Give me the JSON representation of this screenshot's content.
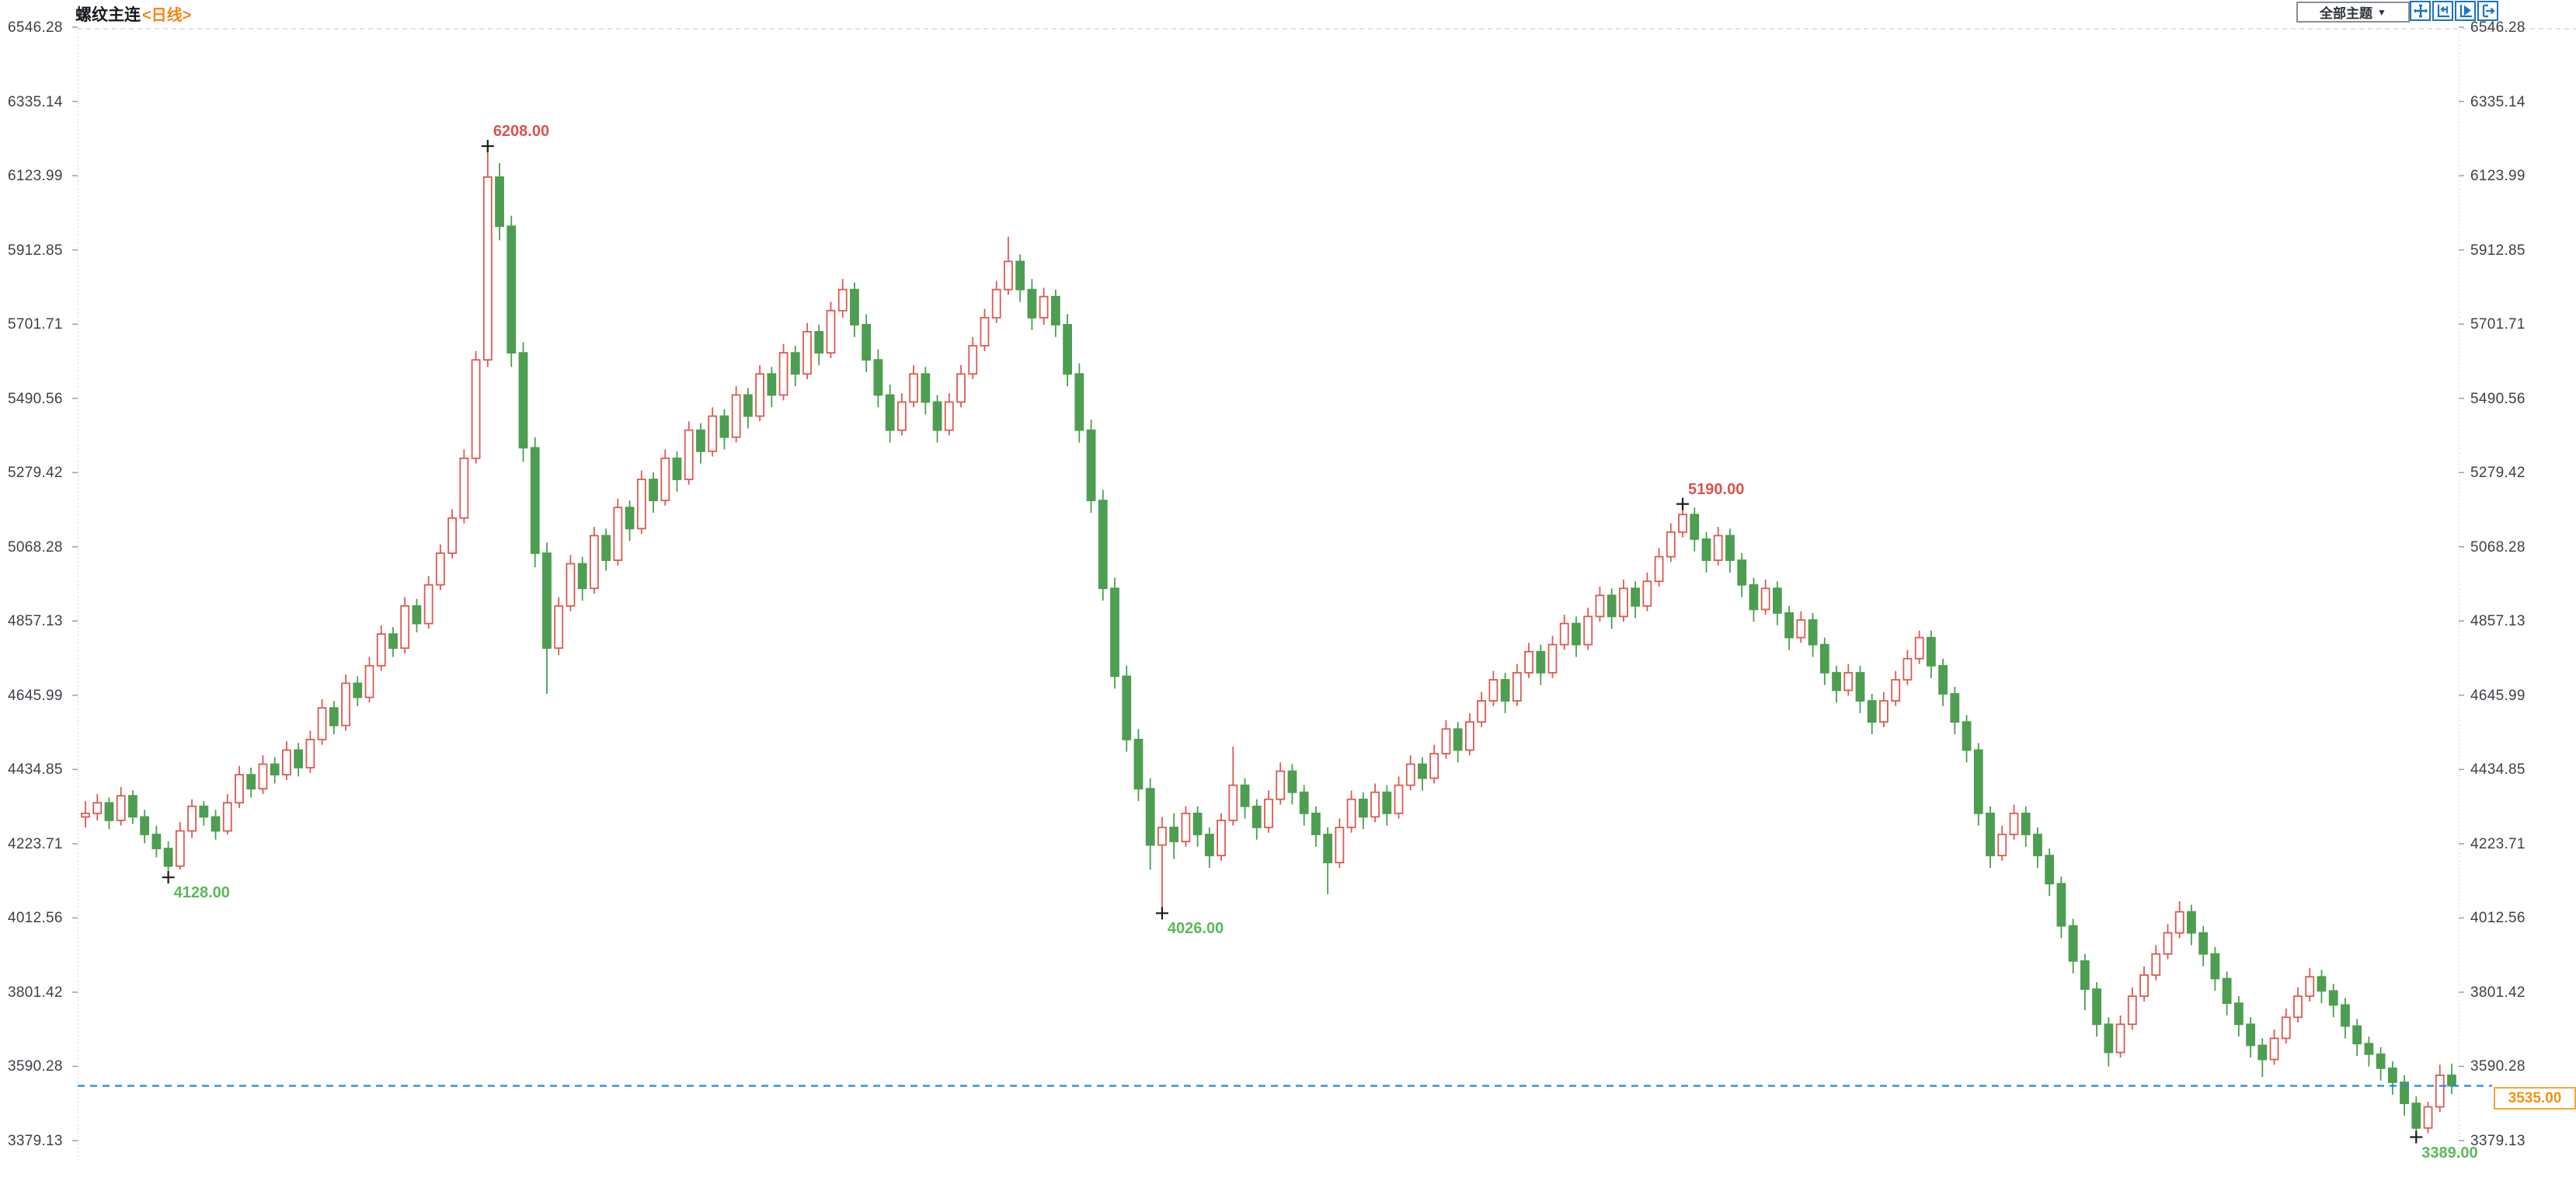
{
  "header": {
    "title": "螺纹主连",
    "period_tag": "<日线>",
    "theme_dropdown": "全部主题",
    "dropdown_arrow": "▼",
    "toolbar_icons": [
      "crosshair-move-icon",
      "axis-compress-icon",
      "axis-play-icon",
      "pan-right-icon"
    ]
  },
  "current_price": {
    "value": "3535.00",
    "line_value": 3535
  },
  "colors": {
    "up": "#dc5a52",
    "down": "#4d9e50",
    "annotation_high": "#d9534f",
    "annotation_low": "#5cb85c",
    "price_line": "#2188e8",
    "price_badge_border": "#f5a63b",
    "price_badge_text": "#f0940f",
    "axis_text": "#3d4148",
    "icon_blue": "#1a74c8",
    "grid": "#c9c9c9"
  },
  "chart_data": {
    "type": "candlestick",
    "title": "螺纹主连 日线",
    "legend": [],
    "grid": "axis-ticks-only",
    "ylim": [
      3379.13,
      6546.28
    ],
    "y_axis_ticks": [
      "6546.28",
      "6335.14",
      "6123.99",
      "5912.85",
      "5701.71",
      "5490.56",
      "5279.42",
      "5068.28",
      "4857.13",
      "4645.99",
      "4434.85",
      "4223.71",
      "4012.56",
      "3801.42",
      "3590.28",
      "3379.13"
    ],
    "up_rule": "close>=open hollow red",
    "down_rule": "close<open solid green",
    "annotations": [
      {
        "index": 34,
        "price": 6208,
        "label": "6208.00",
        "kind": "high"
      },
      {
        "index": 7,
        "price": 4128,
        "label": "4128.00",
        "kind": "low"
      },
      {
        "index": 91,
        "price": 4026,
        "label": "4026.00",
        "kind": "low"
      },
      {
        "index": 135,
        "price": 5190,
        "label": "5190.00",
        "kind": "high"
      },
      {
        "index": 197,
        "price": 3389,
        "label": "3389.00",
        "kind": "low"
      }
    ],
    "current_price_line": 3535,
    "candles": [
      [
        4300,
        4345,
        4270,
        4310
      ],
      [
        4310,
        4365,
        4290,
        4340
      ],
      [
        4340,
        4355,
        4265,
        4290
      ],
      [
        4290,
        4385,
        4275,
        4360
      ],
      [
        4360,
        4375,
        4280,
        4300
      ],
      [
        4300,
        4320,
        4225,
        4250
      ],
      [
        4250,
        4275,
        4185,
        4210
      ],
      [
        4210,
        4230,
        4128,
        4160
      ],
      [
        4160,
        4285,
        4150,
        4260
      ],
      [
        4260,
        4350,
        4240,
        4330
      ],
      [
        4330,
        4345,
        4275,
        4300
      ],
      [
        4300,
        4320,
        4235,
        4260
      ],
      [
        4260,
        4365,
        4250,
        4340
      ],
      [
        4340,
        4445,
        4325,
        4420
      ],
      [
        4420,
        4440,
        4355,
        4380
      ],
      [
        4380,
        4475,
        4365,
        4450
      ],
      [
        4450,
        4470,
        4395,
        4420
      ],
      [
        4420,
        4515,
        4405,
        4490
      ],
      [
        4490,
        4510,
        4415,
        4440
      ],
      [
        4440,
        4545,
        4425,
        4520
      ],
      [
        4520,
        4635,
        4505,
        4610
      ],
      [
        4610,
        4630,
        4535,
        4560
      ],
      [
        4560,
        4705,
        4545,
        4680
      ],
      [
        4680,
        4700,
        4615,
        4640
      ],
      [
        4640,
        4755,
        4625,
        4730
      ],
      [
        4730,
        4845,
        4715,
        4820
      ],
      [
        4820,
        4840,
        4755,
        4780
      ],
      [
        4780,
        4925,
        4765,
        4900
      ],
      [
        4900,
        4920,
        4825,
        4850
      ],
      [
        4850,
        4985,
        4835,
        4960
      ],
      [
        4960,
        5075,
        4945,
        5050
      ],
      [
        5050,
        5175,
        5035,
        5150
      ],
      [
        5150,
        5345,
        5135,
        5320
      ],
      [
        5320,
        5625,
        5305,
        5600
      ],
      [
        5600,
        6208,
        5580,
        6120
      ],
      [
        6120,
        6160,
        5940,
        5980
      ],
      [
        5980,
        6010,
        5580,
        5620
      ],
      [
        5620,
        5650,
        5310,
        5350
      ],
      [
        5350,
        5380,
        5010,
        5050
      ],
      [
        5050,
        5080,
        4650,
        4780
      ],
      [
        4780,
        4925,
        4760,
        4900
      ],
      [
        4900,
        5045,
        4885,
        5020
      ],
      [
        5020,
        5040,
        4915,
        4950
      ],
      [
        4950,
        5125,
        4935,
        5100
      ],
      [
        5100,
        5120,
        5000,
        5030
      ],
      [
        5030,
        5205,
        5015,
        5180
      ],
      [
        5180,
        5200,
        5085,
        5120
      ],
      [
        5120,
        5285,
        5105,
        5260
      ],
      [
        5260,
        5280,
        5165,
        5200
      ],
      [
        5200,
        5345,
        5185,
        5320
      ],
      [
        5320,
        5340,
        5225,
        5260
      ],
      [
        5260,
        5425,
        5245,
        5400
      ],
      [
        5400,
        5420,
        5305,
        5340
      ],
      [
        5340,
        5465,
        5325,
        5440
      ],
      [
        5440,
        5460,
        5345,
        5380
      ],
      [
        5380,
        5525,
        5365,
        5500
      ],
      [
        5500,
        5520,
        5405,
        5440
      ],
      [
        5440,
        5585,
        5425,
        5560
      ],
      [
        5560,
        5580,
        5465,
        5500
      ],
      [
        5500,
        5645,
        5485,
        5620
      ],
      [
        5620,
        5640,
        5525,
        5560
      ],
      [
        5560,
        5705,
        5545,
        5680
      ],
      [
        5680,
        5700,
        5585,
        5620
      ],
      [
        5620,
        5765,
        5605,
        5740
      ],
      [
        5740,
        5830,
        5720,
        5800
      ],
      [
        5800,
        5820,
        5665,
        5700
      ],
      [
        5700,
        5730,
        5565,
        5600
      ],
      [
        5600,
        5630,
        5465,
        5500
      ],
      [
        5500,
        5530,
        5365,
        5400
      ],
      [
        5400,
        5505,
        5385,
        5480
      ],
      [
        5480,
        5585,
        5465,
        5560
      ],
      [
        5560,
        5580,
        5445,
        5480
      ],
      [
        5480,
        5500,
        5365,
        5400
      ],
      [
        5400,
        5505,
        5385,
        5480
      ],
      [
        5480,
        5585,
        5465,
        5560
      ],
      [
        5560,
        5665,
        5545,
        5640
      ],
      [
        5640,
        5745,
        5625,
        5720
      ],
      [
        5720,
        5825,
        5705,
        5800
      ],
      [
        5800,
        5950,
        5785,
        5880
      ],
      [
        5880,
        5900,
        5765,
        5800
      ],
      [
        5800,
        5830,
        5685,
        5720
      ],
      [
        5720,
        5805,
        5700,
        5780
      ],
      [
        5780,
        5800,
        5665,
        5700
      ],
      [
        5700,
        5730,
        5525,
        5560
      ],
      [
        5560,
        5590,
        5365,
        5400
      ],
      [
        5400,
        5430,
        5165,
        5200
      ],
      [
        5200,
        5230,
        4915,
        4950
      ],
      [
        4950,
        4980,
        4665,
        4700
      ],
      [
        4700,
        4730,
        4485,
        4520
      ],
      [
        4520,
        4550,
        4345,
        4380
      ],
      [
        4380,
        4410,
        4150,
        4220
      ],
      [
        4220,
        4300,
        4026,
        4270
      ],
      [
        4270,
        4310,
        4180,
        4230
      ],
      [
        4230,
        4330,
        4215,
        4310
      ],
      [
        4310,
        4330,
        4215,
        4250
      ],
      [
        4250,
        4270,
        4155,
        4190
      ],
      [
        4190,
        4310,
        4175,
        4290
      ],
      [
        4290,
        4500,
        4275,
        4390
      ],
      [
        4390,
        4410,
        4295,
        4330
      ],
      [
        4330,
        4350,
        4235,
        4270
      ],
      [
        4270,
        4375,
        4255,
        4350
      ],
      [
        4350,
        4455,
        4335,
        4430
      ],
      [
        4430,
        4450,
        4335,
        4370
      ],
      [
        4370,
        4390,
        4275,
        4310
      ],
      [
        4310,
        4330,
        4215,
        4250
      ],
      [
        4250,
        4270,
        4080,
        4170
      ],
      [
        4170,
        4295,
        4155,
        4270
      ],
      [
        4270,
        4375,
        4255,
        4350
      ],
      [
        4350,
        4370,
        4265,
        4300
      ],
      [
        4300,
        4395,
        4285,
        4370
      ],
      [
        4370,
        4390,
        4275,
        4310
      ],
      [
        4310,
        4415,
        4295,
        4390
      ],
      [
        4390,
        4475,
        4375,
        4450
      ],
      [
        4450,
        4470,
        4375,
        4410
      ],
      [
        4410,
        4505,
        4395,
        4480
      ],
      [
        4480,
        4575,
        4465,
        4550
      ],
      [
        4550,
        4570,
        4455,
        4490
      ],
      [
        4490,
        4595,
        4475,
        4570
      ],
      [
        4570,
        4655,
        4555,
        4630
      ],
      [
        4630,
        4715,
        4615,
        4690
      ],
      [
        4690,
        4710,
        4595,
        4630
      ],
      [
        4630,
        4735,
        4615,
        4710
      ],
      [
        4710,
        4795,
        4695,
        4770
      ],
      [
        4770,
        4790,
        4675,
        4710
      ],
      [
        4710,
        4815,
        4695,
        4790
      ],
      [
        4790,
        4875,
        4775,
        4850
      ],
      [
        4850,
        4870,
        4755,
        4790
      ],
      [
        4790,
        4895,
        4775,
        4870
      ],
      [
        4870,
        4955,
        4855,
        4930
      ],
      [
        4930,
        4950,
        4835,
        4870
      ],
      [
        4870,
        4975,
        4855,
        4950
      ],
      [
        4950,
        4970,
        4865,
        4900
      ],
      [
        4900,
        4995,
        4885,
        4970
      ],
      [
        4970,
        5065,
        4955,
        5040
      ],
      [
        5040,
        5135,
        5025,
        5110
      ],
      [
        5110,
        5190,
        5095,
        5160
      ],
      [
        5160,
        5180,
        5055,
        5090
      ],
      [
        5090,
        5110,
        4995,
        5030
      ],
      [
        5030,
        5125,
        5015,
        5100
      ],
      [
        5100,
        5120,
        4995,
        5030
      ],
      [
        5030,
        5050,
        4925,
        4960
      ],
      [
        4960,
        4980,
        4855,
        4890
      ],
      [
        4890,
        4975,
        4875,
        4950
      ],
      [
        4950,
        4970,
        4845,
        4880
      ],
      [
        4880,
        4900,
        4775,
        4810
      ],
      [
        4810,
        4885,
        4795,
        4860
      ],
      [
        4860,
        4880,
        4755,
        4790
      ],
      [
        4790,
        4810,
        4675,
        4710
      ],
      [
        4710,
        4730,
        4625,
        4660
      ],
      [
        4660,
        4735,
        4645,
        4710
      ],
      [
        4710,
        4730,
        4595,
        4630
      ],
      [
        4630,
        4650,
        4535,
        4570
      ],
      [
        4570,
        4655,
        4555,
        4630
      ],
      [
        4630,
        4715,
        4615,
        4690
      ],
      [
        4690,
        4775,
        4675,
        4750
      ],
      [
        4750,
        4830,
        4735,
        4810
      ],
      [
        4810,
        4830,
        4695,
        4730
      ],
      [
        4730,
        4750,
        4615,
        4650
      ],
      [
        4650,
        4670,
        4535,
        4570
      ],
      [
        4570,
        4590,
        4455,
        4490
      ],
      [
        4490,
        4510,
        4275,
        4310
      ],
      [
        4310,
        4330,
        4155,
        4190
      ],
      [
        4190,
        4275,
        4175,
        4250
      ],
      [
        4250,
        4335,
        4235,
        4310
      ],
      [
        4310,
        4330,
        4215,
        4250
      ],
      [
        4250,
        4270,
        4155,
        4190
      ],
      [
        4190,
        4210,
        4075,
        4110
      ],
      [
        4110,
        4130,
        3955,
        3990
      ],
      [
        3990,
        4010,
        3855,
        3890
      ],
      [
        3890,
        3910,
        3750,
        3810
      ],
      [
        3810,
        3830,
        3675,
        3710
      ],
      [
        3710,
        3730,
        3590,
        3630
      ],
      [
        3630,
        3735,
        3615,
        3710
      ],
      [
        3710,
        3815,
        3695,
        3790
      ],
      [
        3790,
        3875,
        3775,
        3850
      ],
      [
        3850,
        3935,
        3835,
        3910
      ],
      [
        3910,
        3995,
        3895,
        3970
      ],
      [
        3970,
        4060,
        3955,
        4030
      ],
      [
        4030,
        4050,
        3935,
        3970
      ],
      [
        3970,
        3990,
        3875,
        3910
      ],
      [
        3910,
        3930,
        3805,
        3840
      ],
      [
        3840,
        3860,
        3735,
        3770
      ],
      [
        3770,
        3790,
        3675,
        3710
      ],
      [
        3710,
        3730,
        3615,
        3650
      ],
      [
        3650,
        3670,
        3560,
        3610
      ],
      [
        3610,
        3695,
        3595,
        3670
      ],
      [
        3670,
        3755,
        3655,
        3730
      ],
      [
        3730,
        3815,
        3715,
        3790
      ],
      [
        3790,
        3870,
        3775,
        3845
      ],
      [
        3845,
        3865,
        3770,
        3805
      ],
      [
        3805,
        3825,
        3730,
        3765
      ],
      [
        3765,
        3785,
        3670,
        3705
      ],
      [
        3705,
        3725,
        3620,
        3655
      ],
      [
        3655,
        3675,
        3590,
        3625
      ],
      [
        3625,
        3645,
        3550,
        3585
      ],
      [
        3585,
        3605,
        3510,
        3545
      ],
      [
        3545,
        3565,
        3450,
        3485
      ],
      [
        3485,
        3505,
        3389,
        3415
      ],
      [
        3415,
        3490,
        3400,
        3475
      ],
      [
        3475,
        3595,
        3460,
        3565
      ],
      [
        3565,
        3598,
        3512,
        3535
      ]
    ]
  }
}
